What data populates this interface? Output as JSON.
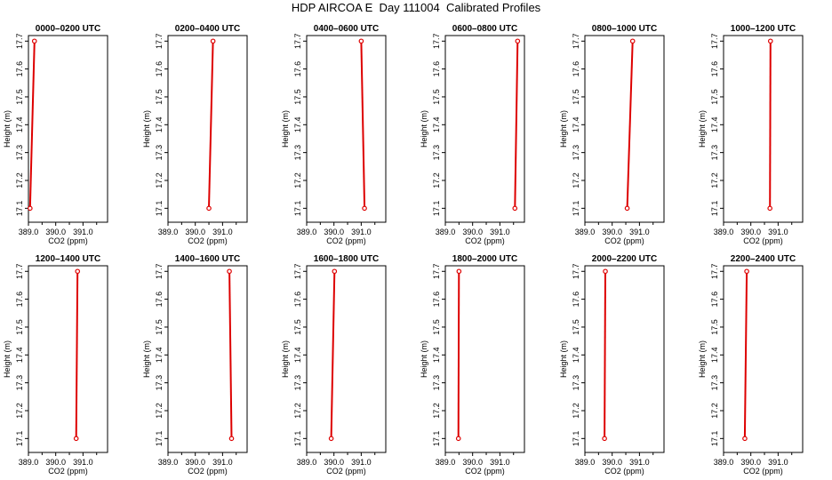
{
  "figure": {
    "title": "HDP AIRCOA E  Day 111004  Calibrated Profiles",
    "line_color": "#dd0000"
  },
  "chart_data": [
    {
      "type": "line",
      "title": "0000–0200 UTC",
      "xlabel": "CO2 (ppm)",
      "ylabel": "Height (m)",
      "xlim": [
        389.0,
        391.9
      ],
      "ylim": [
        17.05,
        17.72
      ],
      "xticks": [
        "389.0",
        "390.0",
        "391.0"
      ],
      "yticks": [
        "17.1",
        "17.2",
        "17.3",
        "17.4",
        "17.5",
        "17.6",
        "17.7"
      ],
      "series": [
        {
          "x": [
            389.22,
            389.06
          ],
          "y": [
            17.7,
            17.1
          ]
        }
      ]
    },
    {
      "type": "line",
      "title": "0200–0400 UTC",
      "xlabel": "CO2 (ppm)",
      "ylabel": "Height (m)",
      "xlim": [
        389.0,
        391.9
      ],
      "ylim": [
        17.05,
        17.72
      ],
      "xticks": [
        "389.0",
        "390.0",
        "391.0"
      ],
      "yticks": [
        "17.1",
        "17.2",
        "17.3",
        "17.4",
        "17.5",
        "17.6",
        "17.7"
      ],
      "series": [
        {
          "x": [
            390.65,
            390.5
          ],
          "y": [
            17.7,
            17.1
          ]
        }
      ]
    },
    {
      "type": "line",
      "title": "0400–0600 UTC",
      "xlabel": "CO2 (ppm)",
      "ylabel": "Height (m)",
      "xlim": [
        389.0,
        391.9
      ],
      "ylim": [
        17.05,
        17.72
      ],
      "xticks": [
        "389.0",
        "390.0",
        "391.0"
      ],
      "yticks": [
        "17.1",
        "17.2",
        "17.3",
        "17.4",
        "17.5",
        "17.6",
        "17.7"
      ],
      "series": [
        {
          "x": [
            391.0,
            391.12
          ],
          "y": [
            17.7,
            17.1
          ]
        }
      ]
    },
    {
      "type": "line",
      "title": "0600–0800 UTC",
      "xlabel": "CO2 (ppm)",
      "ylabel": "Height (m)",
      "xlim": [
        389.0,
        391.9
      ],
      "ylim": [
        17.05,
        17.72
      ],
      "xticks": [
        "389.0",
        "390.0",
        "391.0"
      ],
      "yticks": [
        "17.1",
        "17.2",
        "17.3",
        "17.4",
        "17.5",
        "17.6",
        "17.7"
      ],
      "series": [
        {
          "x": [
            391.65,
            391.55
          ],
          "y": [
            17.7,
            17.1
          ]
        }
      ]
    },
    {
      "type": "line",
      "title": "0800–1000 UTC",
      "xlabel": "CO2 (ppm)",
      "ylabel": "Height (m)",
      "xlim": [
        389.0,
        391.9
      ],
      "ylim": [
        17.05,
        17.72
      ],
      "xticks": [
        "389.0",
        "390.0",
        "391.0"
      ],
      "yticks": [
        "17.1",
        "17.2",
        "17.3",
        "17.4",
        "17.5",
        "17.6",
        "17.7"
      ],
      "series": [
        {
          "x": [
            390.75,
            390.55
          ],
          "y": [
            17.7,
            17.1
          ]
        }
      ]
    },
    {
      "type": "line",
      "title": "1000–1200 UTC",
      "xlabel": "CO2 (ppm)",
      "ylabel": "Height (m)",
      "xlim": [
        389.0,
        391.9
      ],
      "ylim": [
        17.05,
        17.72
      ],
      "xticks": [
        "389.0",
        "390.0",
        "391.0"
      ],
      "yticks": [
        "17.1",
        "17.2",
        "17.3",
        "17.4",
        "17.5",
        "17.6",
        "17.7"
      ],
      "series": [
        {
          "x": [
            390.72,
            390.7
          ],
          "y": [
            17.7,
            17.1
          ]
        }
      ]
    },
    {
      "type": "line",
      "title": "1200–1400 UTC",
      "xlabel": "CO2 (ppm)",
      "ylabel": "Height (m)",
      "xlim": [
        389.0,
        391.9
      ],
      "ylim": [
        17.05,
        17.72
      ],
      "xticks": [
        "389.0",
        "390.0",
        "391.0"
      ],
      "yticks": [
        "17.1",
        "17.2",
        "17.3",
        "17.4",
        "17.5",
        "17.6",
        "17.7"
      ],
      "series": [
        {
          "x": [
            390.8,
            390.75
          ],
          "y": [
            17.7,
            17.1
          ]
        }
      ]
    },
    {
      "type": "line",
      "title": "1400–1600 UTC",
      "xlabel": "CO2 (ppm)",
      "ylabel": "Height (m)",
      "xlim": [
        389.0,
        391.9
      ],
      "ylim": [
        17.05,
        17.72
      ],
      "xticks": [
        "389.0",
        "390.0",
        "391.0"
      ],
      "yticks": [
        "17.1",
        "17.2",
        "17.3",
        "17.4",
        "17.5",
        "17.6",
        "17.7"
      ],
      "series": [
        {
          "x": [
            391.25,
            391.33
          ],
          "y": [
            17.7,
            17.1
          ]
        }
      ]
    },
    {
      "type": "line",
      "title": "1600–1800 UTC",
      "xlabel": "CO2 (ppm)",
      "ylabel": "Height (m)",
      "xlim": [
        389.0,
        391.9
      ],
      "ylim": [
        17.05,
        17.72
      ],
      "xticks": [
        "389.0",
        "390.0",
        "391.0"
      ],
      "yticks": [
        "17.1",
        "17.2",
        "17.3",
        "17.4",
        "17.5",
        "17.6",
        "17.7"
      ],
      "series": [
        {
          "x": [
            390.02,
            389.9
          ],
          "y": [
            17.7,
            17.1
          ]
        }
      ]
    },
    {
      "type": "line",
      "title": "1800–2000 UTC",
      "xlabel": "CO2 (ppm)",
      "ylabel": "Height (m)",
      "xlim": [
        389.0,
        391.9
      ],
      "ylim": [
        17.05,
        17.72
      ],
      "xticks": [
        "389.0",
        "390.0",
        "391.0"
      ],
      "yticks": [
        "17.1",
        "17.2",
        "17.3",
        "17.4",
        "17.5",
        "17.6",
        "17.7"
      ],
      "series": [
        {
          "x": [
            389.5,
            389.48
          ],
          "y": [
            17.7,
            17.1
          ]
        }
      ]
    },
    {
      "type": "line",
      "title": "2000–2200 UTC",
      "xlabel": "CO2 (ppm)",
      "ylabel": "Height (m)",
      "xlim": [
        389.0,
        391.9
      ],
      "ylim": [
        17.05,
        17.72
      ],
      "xticks": [
        "389.0",
        "390.0",
        "391.0"
      ],
      "yticks": [
        "17.1",
        "17.2",
        "17.3",
        "17.4",
        "17.5",
        "17.6",
        "17.7"
      ],
      "series": [
        {
          "x": [
            389.75,
            389.72
          ],
          "y": [
            17.7,
            17.1
          ]
        }
      ]
    },
    {
      "type": "line",
      "title": "2200–2400 UTC",
      "xlabel": "CO2 (ppm)",
      "ylabel": "Height (m)",
      "xlim": [
        389.0,
        391.9
      ],
      "ylim": [
        17.05,
        17.72
      ],
      "xticks": [
        "389.0",
        "390.0",
        "391.0"
      ],
      "yticks": [
        "17.1",
        "17.2",
        "17.3",
        "17.4",
        "17.5",
        "17.6",
        "17.7"
      ],
      "series": [
        {
          "x": [
            389.85,
            389.78
          ],
          "y": [
            17.7,
            17.1
          ]
        }
      ]
    }
  ]
}
